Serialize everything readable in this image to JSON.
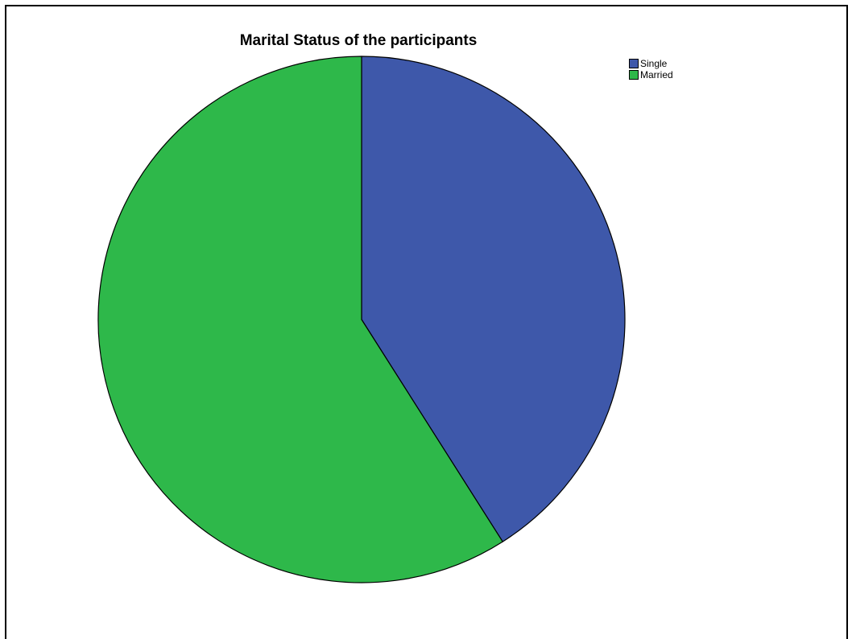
{
  "chart_data": {
    "type": "pie",
    "title": "Marital Status of the participants",
    "categories": [
      "Single",
      "Married"
    ],
    "values": [
      41,
      59
    ],
    "colors": [
      "#3e58aa",
      "#2eb84a"
    ],
    "legend_position": "top-right",
    "start_angle_deg": 0,
    "direction": "clockwise"
  }
}
